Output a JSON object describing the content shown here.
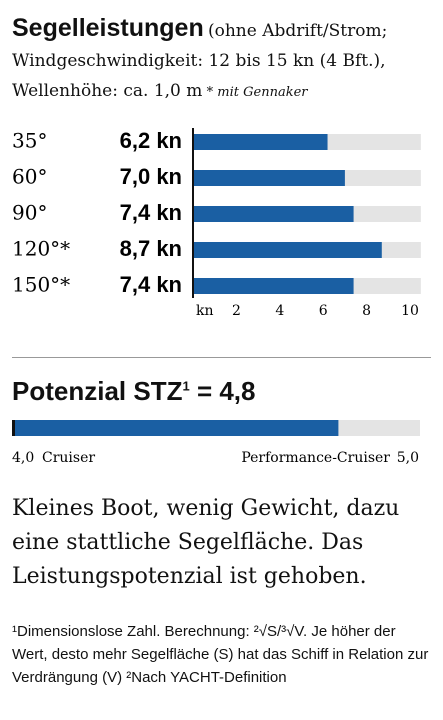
{
  "chart_data": [
    {
      "type": "hbar",
      "title": "Segelleistungen",
      "subtitle": "(ohne Abdrift/Strom; Windgeschwindigkeit: 12 bis 15 kn (4 Bft.), Wellenhöhe: ca. 1,0 m",
      "note": "* mit Gennaker",
      "categories": [
        "35°",
        "60°",
        "90°",
        "120°*",
        "150°*"
      ],
      "values": [
        6.2,
        7.0,
        7.4,
        8.7,
        7.4
      ],
      "value_labels": [
        "6,2 kn",
        "7,0 kn",
        "7,4 kn",
        "8,7 kn",
        "7,4 kn"
      ],
      "color": "#1a5fa3",
      "track_color": "#e4e4e4",
      "x_label": "kn",
      "xlim": [
        0,
        10.5
      ],
      "xticks": [
        2,
        4,
        6,
        8,
        10
      ]
    },
    {
      "type": "gauge",
      "title": "Potenzial STZ",
      "title_note": "1",
      "values": [
        4.8
      ],
      "value_labels": [
        "= 4,8"
      ],
      "color": "#1a5fa3",
      "track_color": "#e4e4e4",
      "xlim": [
        4.0,
        5.0
      ],
      "xticks": [
        {
          "value": 4.0,
          "label": "4,0"
        },
        {
          "value": 5.0,
          "label": "5,0"
        }
      ],
      "range_labels": [
        "Cruiser",
        "Performance-Cruiser"
      ]
    }
  ],
  "text": {
    "summary": "Kleines Boot, wenig Gewicht, dazu eine stattliche Segelfläche. Das Leistungspotenzial ist gehoben.",
    "footnote": "¹Dimensionslose Zahl. Berechnung: ²√S/³√V. Je höher der Wert, desto mehr Segelfläche (S) hat das Schiff in Relation zur Verdrängung (V) ²Nach YACHT-Definition"
  }
}
